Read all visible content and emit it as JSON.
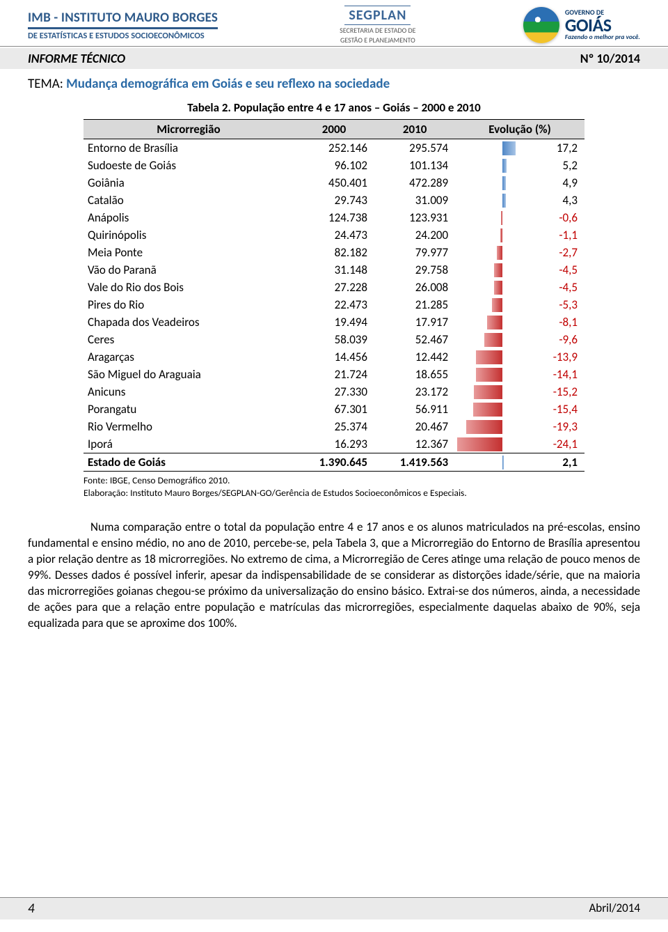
{
  "header": {
    "imb_title": "IMB - INSTITUTO MAURO BORGES",
    "imb_sub": "DE ESTATÍSTICAS E ESTUDOS SOCIOECONÔMICOS",
    "segplan_title": "SEGPLAN",
    "segplan_sub1": "SECRETARIA DE ESTADO DE",
    "segplan_sub2": "GESTÃO E PLANEJAMENTO",
    "goias_gov": "GOVERNO DE",
    "goias_name": "GOIÁS",
    "goias_slogan": "Fazendo o melhor pra você."
  },
  "band": {
    "label": "INFORME TÉCNICO",
    "number": "Nº 10/2014"
  },
  "tema": {
    "prefix": "TEMA: ",
    "text": "Mudança demográfica em Goiás e seu reflexo na sociedade"
  },
  "table": {
    "caption_prefix": "Tabela 2.",
    "caption_rest": " População entre 4 e 17 anos – Goiás – 2000 e 2010",
    "columns": [
      "Microrregião",
      "2000",
      "2010",
      "Evolução (%)"
    ],
    "evo_axis_fraction": 0.75,
    "evo_scale_pos_max": 20,
    "evo_scale_neg_max": 25,
    "rows": [
      {
        "name": "Entorno de Brasília",
        "y2000": "252.146",
        "y2010": "295.574",
        "evo": 17.2
      },
      {
        "name": "Sudoeste de Goiás",
        "y2000": "96.102",
        "y2010": "101.134",
        "evo": 5.2
      },
      {
        "name": "Goiânia",
        "y2000": "450.401",
        "y2010": "472.289",
        "evo": 4.9
      },
      {
        "name": "Catalão",
        "y2000": "29.743",
        "y2010": "31.009",
        "evo": 4.3
      },
      {
        "name": "Anápolis",
        "y2000": "124.738",
        "y2010": "123.931",
        "evo": -0.6
      },
      {
        "name": "Quirinópolis",
        "y2000": "24.473",
        "y2010": "24.200",
        "evo": -1.1
      },
      {
        "name": "Meia Ponte",
        "y2000": "82.182",
        "y2010": "79.977",
        "evo": -2.7
      },
      {
        "name": "Vão do Paranã",
        "y2000": "31.148",
        "y2010": "29.758",
        "evo": -4.5
      },
      {
        "name": "Vale do Rio dos Bois",
        "y2000": "27.228",
        "y2010": "26.008",
        "evo": -4.5
      },
      {
        "name": "Pires do Rio",
        "y2000": "22.473",
        "y2010": "21.285",
        "evo": -5.3
      },
      {
        "name": "Chapada dos Veadeiros",
        "y2000": "19.494",
        "y2010": "17.917",
        "evo": -8.1
      },
      {
        "name": "Ceres",
        "y2000": "58.039",
        "y2010": "52.467",
        "evo": -9.6
      },
      {
        "name": "Aragarças",
        "y2000": "14.456",
        "y2010": "12.442",
        "evo": -13.9
      },
      {
        "name": "São Miguel do Araguaia",
        "y2000": "21.724",
        "y2010": "18.655",
        "evo": -14.1
      },
      {
        "name": "Anicuns",
        "y2000": "27.330",
        "y2010": "23.172",
        "evo": -15.2
      },
      {
        "name": "Porangatu",
        "y2000": "67.301",
        "y2010": "56.911",
        "evo": -15.4
      },
      {
        "name": "Rio Vermelho",
        "y2000": "25.374",
        "y2010": "20.467",
        "evo": -19.3
      },
      {
        "name": "Iporá",
        "y2000": "16.293",
        "y2010": "12.367",
        "evo": -24.1
      }
    ],
    "total": {
      "name": "Estado de Goiás",
      "y2000": "1.390.645",
      "y2010": "1.419.563",
      "evo": 2.1
    },
    "colors": {
      "pos_bar_from": "#4e86c6",
      "pos_bar_to": "#a9c5e6",
      "neg_bar_from": "#e89b9b",
      "neg_bar_to": "#c43030",
      "neg_text": "#c00000"
    }
  },
  "source": {
    "line1": "Fonte: IBGE, Censo Demográfico 2010.",
    "line2": "Elaboração: Instituto Mauro Borges/SEGPLAN-GO/Gerência de Estudos Socioeconômicos e Especiais."
  },
  "paragraph": "Numa comparação entre o total da população entre 4 e 17 anos e os alunos matriculados na pré-escolas, ensino fundamental e ensino médio, no ano de 2010, percebe-se, pela Tabela 3, que a Microrregião do Entorno de Brasília apresentou a pior relação dentre as 18 microrregiões. No extremo de cima, a Microrregião de Ceres atinge uma relação de pouco menos de 99%. Desses dados é possível inferir, apesar da indispensabilidade de se considerar as distorções idade/série, que na maioria das microrregiões goianas chegou-se próximo da universalização do ensino básico. Extrai-se dos números, ainda, a necessidade de ações para que a relação entre população e matrículas das microrregiões, especialmente daquelas abaixo de 90%, seja equalizada para que se aproxime dos 100%.",
  "footer": {
    "page": "4",
    "date": "Abril/2014"
  }
}
